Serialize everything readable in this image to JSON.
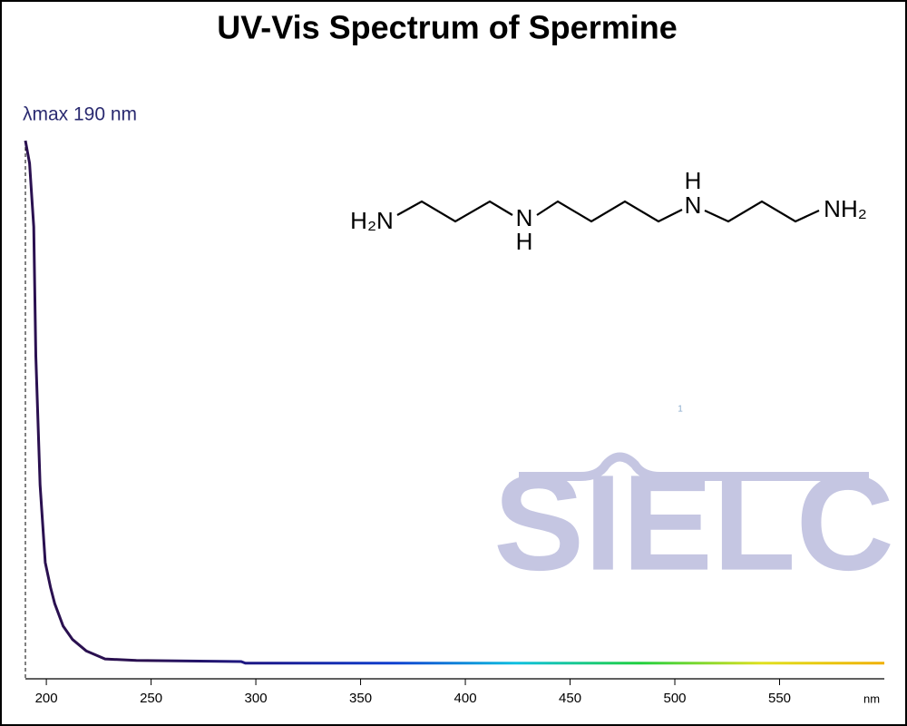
{
  "chart_data": {
    "type": "line",
    "title": "UV-Vis Spectrum of Spermine",
    "annotation": "λmax  190 nm",
    "annotation_x": 190,
    "x_label": "nm",
    "watermark": "SIELC",
    "marker": "1",
    "structure": {
      "atoms": [
        "H₂N",
        "N",
        "H",
        "N",
        "H",
        "NH₂"
      ]
    },
    "xlim": [
      190,
      600
    ],
    "xticks": [
      200,
      250,
      300,
      350,
      400,
      450,
      500,
      550
    ],
    "ylim": [
      0,
      1
    ],
    "x": [
      190,
      192,
      194,
      195,
      197,
      199.5,
      202,
      204,
      208,
      212.5,
      219,
      228,
      243,
      293,
      295,
      350,
      400,
      450,
      500,
      550,
      600
    ],
    "series": [
      {
        "name": "Spermine",
        "colors": [
          "#2a1050",
          "#2a1050",
          "#1a1a90",
          "#1040d0",
          "#10c0e0",
          "#20d040",
          "#e0e020",
          "#f0b000"
        ],
        "values": [
          1.0,
          0.958,
          0.84,
          0.6,
          0.36,
          0.216,
          0.17,
          0.14,
          0.098,
          0.073,
          0.052,
          0.037,
          0.034,
          0.032,
          0.029,
          0.029,
          0.029,
          0.029,
          0.029,
          0.029,
          0.029
        ]
      }
    ]
  }
}
